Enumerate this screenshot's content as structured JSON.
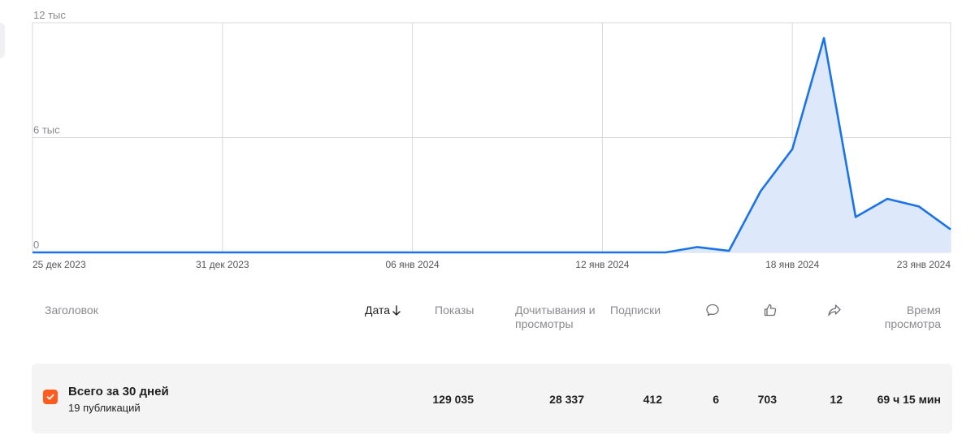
{
  "chart_data": {
    "type": "area",
    "x_tick_labels": [
      "25 дек 2023",
      "31 дек 2023",
      "06 янв 2024",
      "12 янв 2024",
      "18 янв 2024",
      "23 янв 2024"
    ],
    "y_tick_labels": [
      "0",
      "6 тыс",
      "12 тыс"
    ],
    "ylim": [
      0,
      12000
    ],
    "x_range": [
      "25 дек 2023",
      "23 янв 2024"
    ],
    "grid": true,
    "line_color": "#1a73e8",
    "fill_color": "#dde8fb",
    "series": [
      {
        "x": [
          "25 дек 2023",
          "26 дек 2023",
          "27 дек 2023",
          "28 дек 2023",
          "29 дек 2023",
          "30 дек 2023",
          "31 дек 2023",
          "01 янв 2024",
          "02 янв 2024",
          "03 янв 2024",
          "04 янв 2024",
          "05 янв 2024",
          "06 янв 2024",
          "07 янв 2024",
          "08 янв 2024",
          "09 янв 2024",
          "10 янв 2024",
          "11 янв 2024",
          "12 янв 2024",
          "13 янв 2024",
          "14 янв 2024",
          "15 янв 2024",
          "16 янв 2024",
          "17 янв 2024",
          "18 янв 2024",
          "19 янв 2024",
          "20 янв 2024",
          "21 янв 2024",
          "22 янв 2024",
          "23 янв 2024"
        ],
        "values": [
          0,
          0,
          0,
          0,
          0,
          0,
          0,
          0,
          0,
          0,
          0,
          0,
          0,
          0,
          0,
          0,
          0,
          0,
          0,
          0,
          0,
          280,
          80,
          3200,
          5400,
          11200,
          1850,
          2800,
          2400,
          1200
        ]
      }
    ]
  },
  "table": {
    "headers": {
      "title": "Заголовок",
      "date": "Дата",
      "impressions": "Показы",
      "reads": "Дочитывания и просмотры",
      "subscriptions": "Подписки",
      "time": "Время просмотра"
    },
    "icons": {
      "comments": "comment-icon",
      "likes": "thumbs-up-icon",
      "shares": "share-icon",
      "sort": "arrow-down-icon"
    },
    "summary": {
      "title": "Всего за 30 дней",
      "subtitle": "19 публикаций",
      "impressions": "129 035",
      "reads": "28 337",
      "subscriptions": "412",
      "comments": "6",
      "likes": "703",
      "shares": "12",
      "time": "69 ч 15 мин"
    }
  },
  "colors": {
    "accent": "#ff5b1f",
    "line": "#1a73e8"
  }
}
